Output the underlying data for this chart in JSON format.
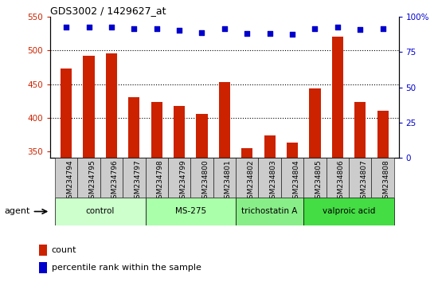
{
  "title": "GDS3002 / 1429627_at",
  "samples": [
    "GSM234794",
    "GSM234795",
    "GSM234796",
    "GSM234797",
    "GSM234798",
    "GSM234799",
    "GSM234800",
    "GSM234801",
    "GSM234802",
    "GSM234803",
    "GSM234804",
    "GSM234805",
    "GSM234806",
    "GSM234807",
    "GSM234808"
  ],
  "counts": [
    473,
    492,
    496,
    431,
    423,
    417,
    406,
    453,
    354,
    373,
    363,
    444,
    521,
    423,
    410
  ],
  "percentile_yvals": [
    535,
    535,
    535,
    532,
    532,
    530,
    527,
    532,
    525,
    525,
    524,
    532,
    535,
    531,
    532
  ],
  "groups": [
    {
      "label": "control",
      "start": 0,
      "end": 3,
      "color": "#ccffcc"
    },
    {
      "label": "MS-275",
      "start": 4,
      "end": 7,
      "color": "#aaffaa"
    },
    {
      "label": "trichostatin A",
      "start": 8,
      "end": 10,
      "color": "#88ee88"
    },
    {
      "label": "valproic acid",
      "start": 11,
      "end": 14,
      "color": "#44dd44"
    }
  ],
  "bar_color": "#cc2200",
  "dot_color": "#0000cc",
  "ylim_left": [
    340,
    550
  ],
  "ylim_right": [
    0,
    100
  ],
  "yticks_left": [
    350,
    400,
    450,
    500,
    550
  ],
  "yticks_right": [
    0,
    25,
    50,
    75,
    100
  ],
  "grid_values": [
    400,
    450,
    500
  ],
  "bar_width": 0.5,
  "agent_label": "agent",
  "tick_bg_color": "#cccccc"
}
